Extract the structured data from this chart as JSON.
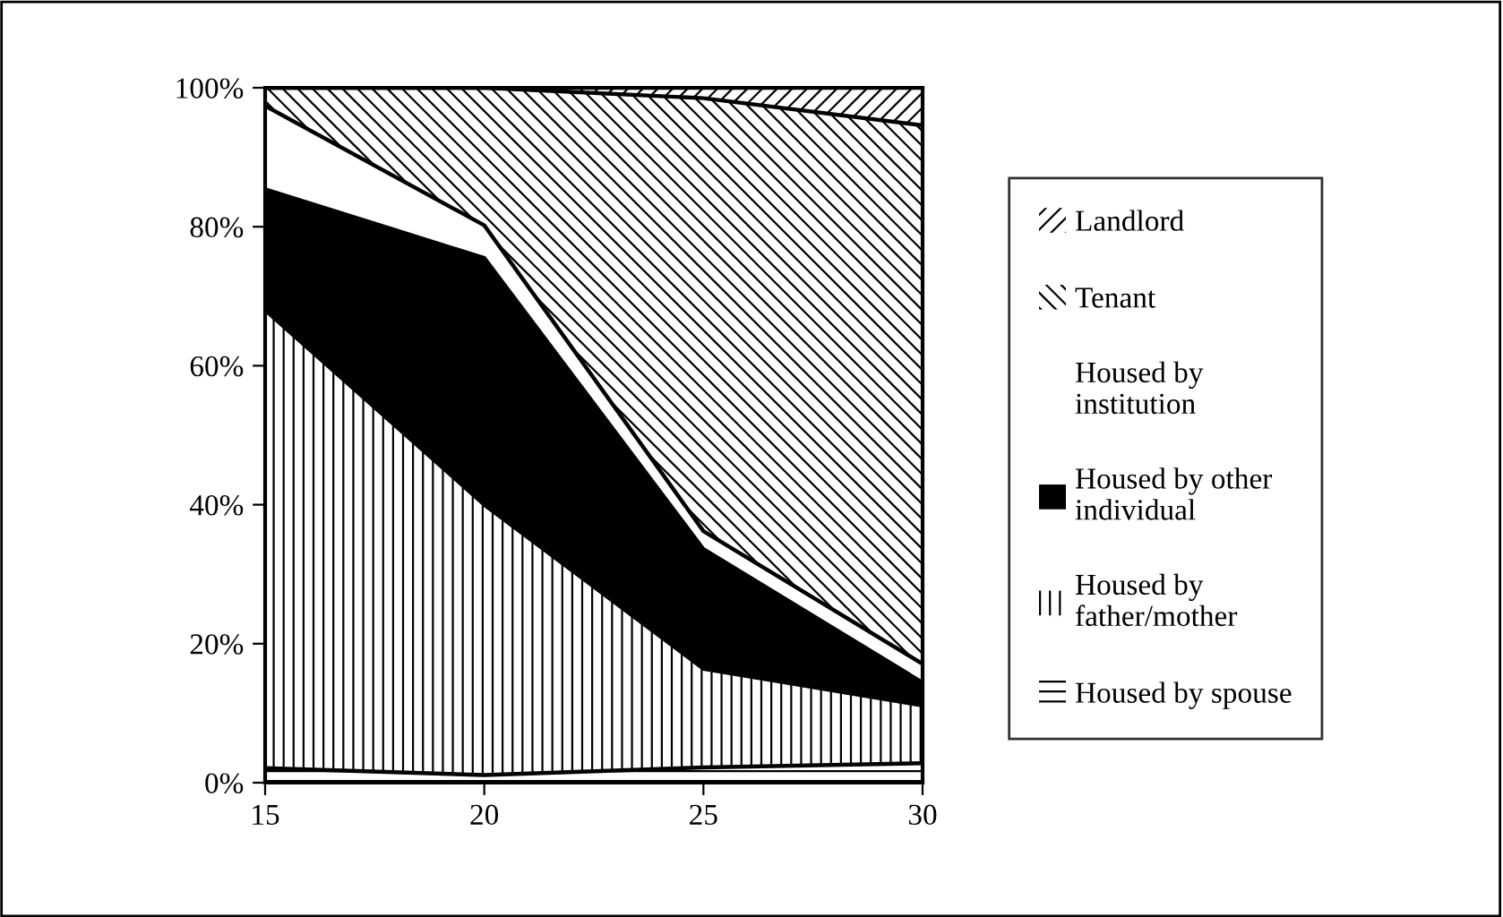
{
  "chart_data": {
    "type": "area",
    "stacked": true,
    "x": [
      15,
      20,
      25,
      30
    ],
    "xlim": [
      15,
      30
    ],
    "xticks": [
      15,
      20,
      25,
      30
    ],
    "ylim": [
      0,
      100
    ],
    "yticks": [
      {
        "value": 0,
        "label": "0%"
      },
      {
        "value": 20,
        "label": "20%"
      },
      {
        "value": 40,
        "label": "40%"
      },
      {
        "value": 60,
        "label": "60%"
      },
      {
        "value": 80,
        "label": "80%"
      },
      {
        "value": 100,
        "label": "100%"
      }
    ],
    "legend": "right",
    "grid": false,
    "series": [
      {
        "name": "Housed by spouse",
        "color": "#ffffff",
        "values": [
          2.1,
          1.1,
          2.2,
          2.8
        ]
      },
      {
        "name": "Housed by\nfather/mother",
        "color": "#ffffff",
        "values": [
          65.9,
          38.9,
          14.2,
          8.3
        ]
      },
      {
        "name": "Housed by other\nindividual",
        "color": "#000000",
        "values": [
          17.4,
          35.5,
          17.2,
          3.3
        ]
      },
      {
        "name": "Housed by\ninstitution",
        "color": "#ffffff",
        "values": [
          12.0,
          4.7,
          2.6,
          2.7
        ]
      },
      {
        "name": "Tenant",
        "color": "#ffffff",
        "values": [
          2.6,
          19.8,
          62.3,
          77.5
        ]
      },
      {
        "name": "Landlord",
        "color": "#ffffff",
        "values": [
          0,
          0,
          1.5,
          5.4
        ]
      }
    ]
  }
}
